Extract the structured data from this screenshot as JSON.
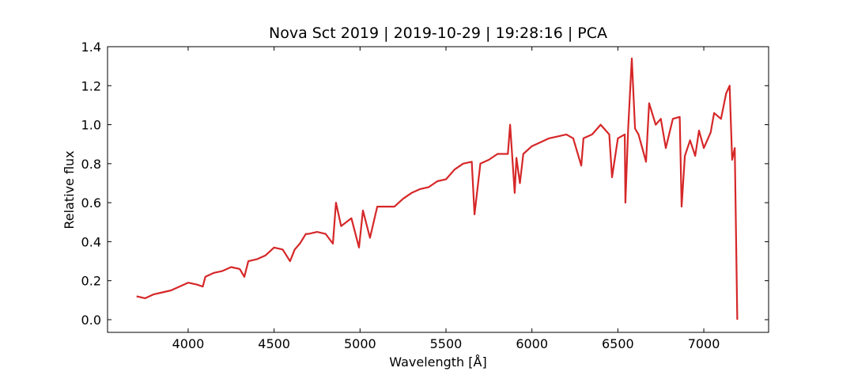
{
  "chart_data": {
    "type": "line",
    "title": "Nova Sct 2019 | 2019-10-29 | 19:28:16 | PCA",
    "xlabel": "Wavelength [Å]",
    "ylabel": "Relative flux",
    "xlim": [
      3531,
      7377
    ],
    "ylim": [
      -0.065,
      1.4
    ],
    "xticks": [
      4000,
      4500,
      5000,
      5500,
      6000,
      6500,
      7000
    ],
    "yticks": [
      {
        "value": 0,
        "label": "0.0"
      },
      0.2,
      0.4,
      0.6,
      0.8,
      {
        "value": 1,
        "label": "1.0"
      },
      1.2,
      1.4
    ],
    "series": [
      {
        "name": "PCA",
        "color": "#d62728",
        "x": [
          3700,
          3750,
          3800,
          3850,
          3900,
          3950,
          4000,
          4050,
          4085,
          4100,
          4150,
          4200,
          4250,
          4300,
          4327,
          4350,
          4400,
          4450,
          4500,
          4550,
          4593,
          4620,
          4650,
          4685,
          4700,
          4750,
          4800,
          4842,
          4860,
          4890,
          4950,
          4994,
          5017,
          5058,
          5100,
          5150,
          5200,
          5250,
          5300,
          5350,
          5400,
          5450,
          5500,
          5550,
          5600,
          5650,
          5666,
          5700,
          5750,
          5800,
          5860,
          5873,
          5900,
          5910,
          5930,
          5950,
          6000,
          6050,
          6100,
          6150,
          6200,
          6240,
          6287,
          6300,
          6350,
          6400,
          6450,
          6466,
          6500,
          6540,
          6544,
          6560,
          6581,
          6600,
          6620,
          6664,
          6682,
          6720,
          6750,
          6779,
          6820,
          6860,
          6871,
          6890,
          6920,
          6950,
          6972,
          7000,
          7040,
          7060,
          7100,
          7130,
          7150,
          7165,
          7180,
          7195
        ],
        "values": [
          0.12,
          0.11,
          0.13,
          0.14,
          0.15,
          0.17,
          0.19,
          0.18,
          0.17,
          0.22,
          0.24,
          0.25,
          0.27,
          0.26,
          0.22,
          0.3,
          0.31,
          0.33,
          0.37,
          0.36,
          0.3,
          0.36,
          0.39,
          0.44,
          0.44,
          0.45,
          0.44,
          0.39,
          0.6,
          0.48,
          0.52,
          0.37,
          0.56,
          0.42,
          0.58,
          0.58,
          0.58,
          0.62,
          0.65,
          0.67,
          0.68,
          0.71,
          0.72,
          0.77,
          0.8,
          0.81,
          0.54,
          0.8,
          0.82,
          0.85,
          0.85,
          1.0,
          0.65,
          0.83,
          0.7,
          0.85,
          0.89,
          0.91,
          0.93,
          0.94,
          0.95,
          0.93,
          0.79,
          0.93,
          0.95,
          1.0,
          0.95,
          0.73,
          0.93,
          0.95,
          0.6,
          0.98,
          1.34,
          0.98,
          0.95,
          0.81,
          1.11,
          1.0,
          1.03,
          0.88,
          1.03,
          1.04,
          0.58,
          0.84,
          0.92,
          0.84,
          0.97,
          0.88,
          0.96,
          1.06,
          1.03,
          1.16,
          1.2,
          0.82,
          0.88,
          0.0
        ]
      }
    ]
  }
}
